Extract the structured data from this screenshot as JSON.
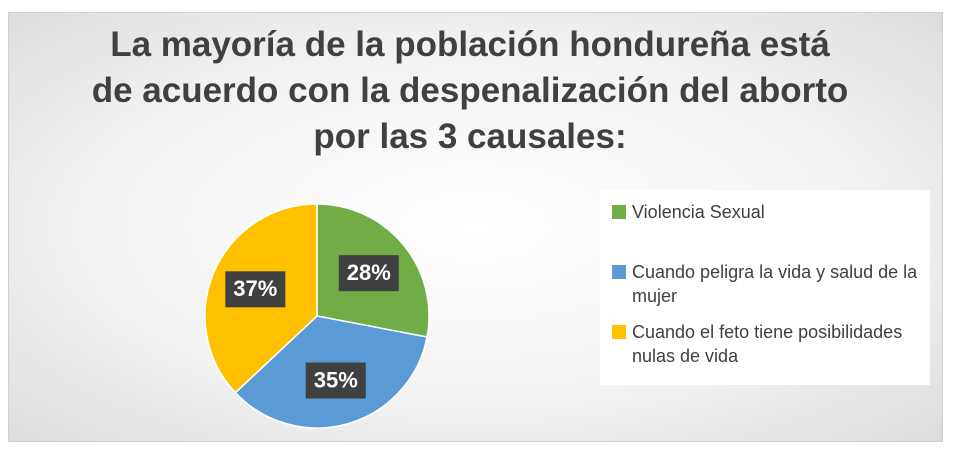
{
  "chart_data": {
    "type": "pie",
    "title": "La mayoría de la población hondureña está de acuerdo con la despenalización del aborto por las 3 causales:",
    "categories": [
      "Violencia Sexual",
      "Cuando peligra la vida y salud de la mujer",
      "Cuando el feto tiene posibilidades nulas de vida"
    ],
    "values": [
      28,
      35,
      37
    ],
    "value_labels": [
      "28%",
      "35%",
      "37%"
    ],
    "colors": [
      "#70ad47",
      "#5b9bd5",
      "#ffc000"
    ],
    "legend": "right"
  }
}
